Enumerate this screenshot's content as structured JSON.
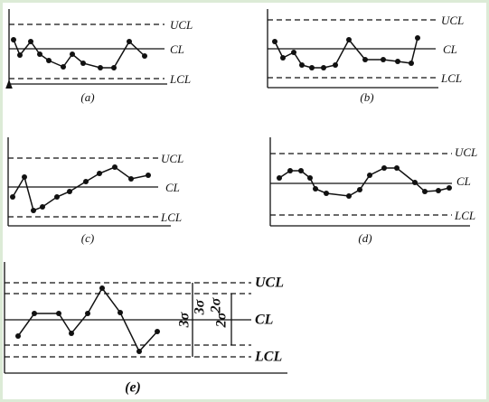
{
  "panels": [
    {
      "label": "(a)",
      "ucl": "UCL",
      "cl": "CL",
      "lcl": "LCL"
    },
    {
      "label": "(b)",
      "ucl": "UCL",
      "cl": "CL",
      "lcl": "LCL"
    },
    {
      "label": "(c)",
      "ucl": "UCL",
      "cl": "CL",
      "lcl": "LCL"
    },
    {
      "label": "(d)",
      "ucl": "UCL",
      "cl": "CL",
      "lcl": "LCL"
    },
    {
      "label": "(e)",
      "ucl": "UCL",
      "cl": "CL",
      "lcl": "LCL",
      "sigma3": "3σ",
      "sigma2": "2σ"
    }
  ]
}
